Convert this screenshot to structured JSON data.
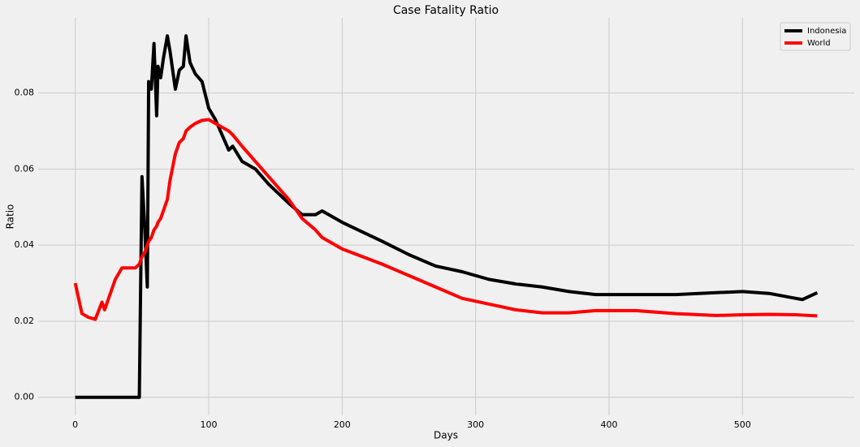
{
  "chart_data": {
    "type": "line",
    "title": "Case Fatality Ratio",
    "x_label": "Days",
    "y_label": "Ratio",
    "x": [
      0,
      5,
      10,
      15,
      20,
      22,
      25,
      30,
      35,
      40,
      45,
      48,
      49,
      50,
      52,
      54,
      55,
      57,
      59,
      61,
      62,
      64,
      66,
      69,
      71,
      75,
      78,
      81,
      83,
      86,
      90,
      95,
      100,
      105,
      110,
      115,
      118,
      125,
      135,
      145,
      160,
      170,
      180,
      185,
      200,
      215,
      230,
      250,
      270,
      290,
      310,
      330,
      350,
      370,
      390,
      420,
      450,
      480,
      500,
      520,
      540,
      545,
      556
    ],
    "series": [
      {
        "name": "Indonesia",
        "color": "#000000",
        "values": [
          0,
          0,
          0,
          0,
          0,
          0,
          0,
          0,
          0,
          0,
          0,
          0,
          0.0295,
          0.058,
          0.045,
          0.029,
          0.083,
          0.081,
          0.093,
          0.074,
          0.087,
          0.084,
          0.089,
          0.095,
          0.091,
          0.081,
          0.086,
          0.087,
          0.095,
          0.088,
          0.085,
          0.083,
          0.076,
          0.073,
          0.069,
          0.065,
          0.066,
          0.062,
          0.06,
          0.056,
          0.051,
          0.048,
          0.048,
          0.049,
          0.046,
          0.0435,
          0.041,
          0.0375,
          0.0345,
          0.033,
          0.031,
          0.0298,
          0.029,
          0.0278,
          0.027,
          0.027,
          0.027,
          0.0275,
          0.0278,
          0.0273,
          0.026,
          0.0257,
          0.0275
        ]
      },
      {
        "name": "World",
        "color": "#ff0000",
        "values": [
          0.03,
          0.022,
          0.021,
          0.0205,
          0.025,
          0.023,
          0.026,
          0.031,
          0.034,
          0.034,
          0.034,
          0.035,
          0.036,
          0.037,
          0.038,
          0.04,
          0.041,
          0.042,
          0.044,
          0.045,
          0.046,
          0.047,
          0.049,
          0.052,
          0.057,
          0.064,
          0.067,
          0.068,
          0.07,
          0.071,
          0.072,
          0.0728,
          0.073,
          0.072,
          0.071,
          0.07,
          0.069,
          0.066,
          0.062,
          0.058,
          0.052,
          0.047,
          0.044,
          0.042,
          0.039,
          0.037,
          0.035,
          0.032,
          0.029,
          0.026,
          0.0245,
          0.023,
          0.0222,
          0.0222,
          0.0228,
          0.0228,
          0.022,
          0.0215,
          0.0217,
          0.0218,
          0.0217,
          0.0216,
          0.0214
        ]
      }
    ],
    "xlim": [
      -27.8,
      583.8
    ],
    "xticks": [
      0,
      100,
      200,
      300,
      400,
      500
    ],
    "ylim": [
      -0.00475,
      0.09975
    ],
    "yticks": [
      {
        "value": 0,
        "label": "0.00"
      },
      {
        "value": 0.02,
        "label": "0.02"
      },
      {
        "value": 0.04,
        "label": "0.04"
      },
      {
        "value": 0.06,
        "label": "0.06"
      },
      {
        "value": 0.08,
        "label": "0.08"
      }
    ],
    "grid": true,
    "legend": "upper right"
  }
}
